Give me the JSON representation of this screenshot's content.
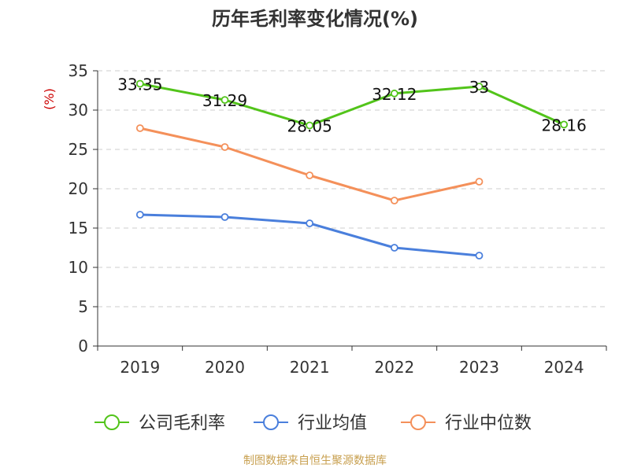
{
  "chart_data": {
    "type": "line",
    "title": "历年毛利率变化情况(%)",
    "ylabel": "(%)",
    "xlabel": "",
    "categories": [
      "2019",
      "2020",
      "2021",
      "2022",
      "2023",
      "2024"
    ],
    "ylim": [
      0,
      35
    ],
    "yticks": [
      0,
      5,
      10,
      15,
      20,
      25,
      30,
      35
    ],
    "grid": true,
    "legend_position": "bottom",
    "series": [
      {
        "name": "公司毛利率",
        "color": "#52c41a",
        "values": [
          33.35,
          31.29,
          28.05,
          32.12,
          33,
          28.16
        ],
        "labels": [
          "33.35",
          "31.29",
          "28.05",
          "32.12",
          "33",
          "28.16"
        ]
      },
      {
        "name": "行业均值",
        "color": "#4a7fdc",
        "values": [
          16.7,
          16.4,
          15.6,
          12.5,
          11.5,
          null
        ]
      },
      {
        "name": "行业中位数",
        "color": "#f4905a",
        "values": [
          27.7,
          25.3,
          21.7,
          18.5,
          20.9,
          null
        ]
      }
    ]
  },
  "source": "制图数据来自恒生聚源数据库",
  "colors": {
    "axis": "#333333",
    "grid": "#cccccc",
    "title": "#333333",
    "ylabel": "#cc0000",
    "source": "#c8a050"
  }
}
